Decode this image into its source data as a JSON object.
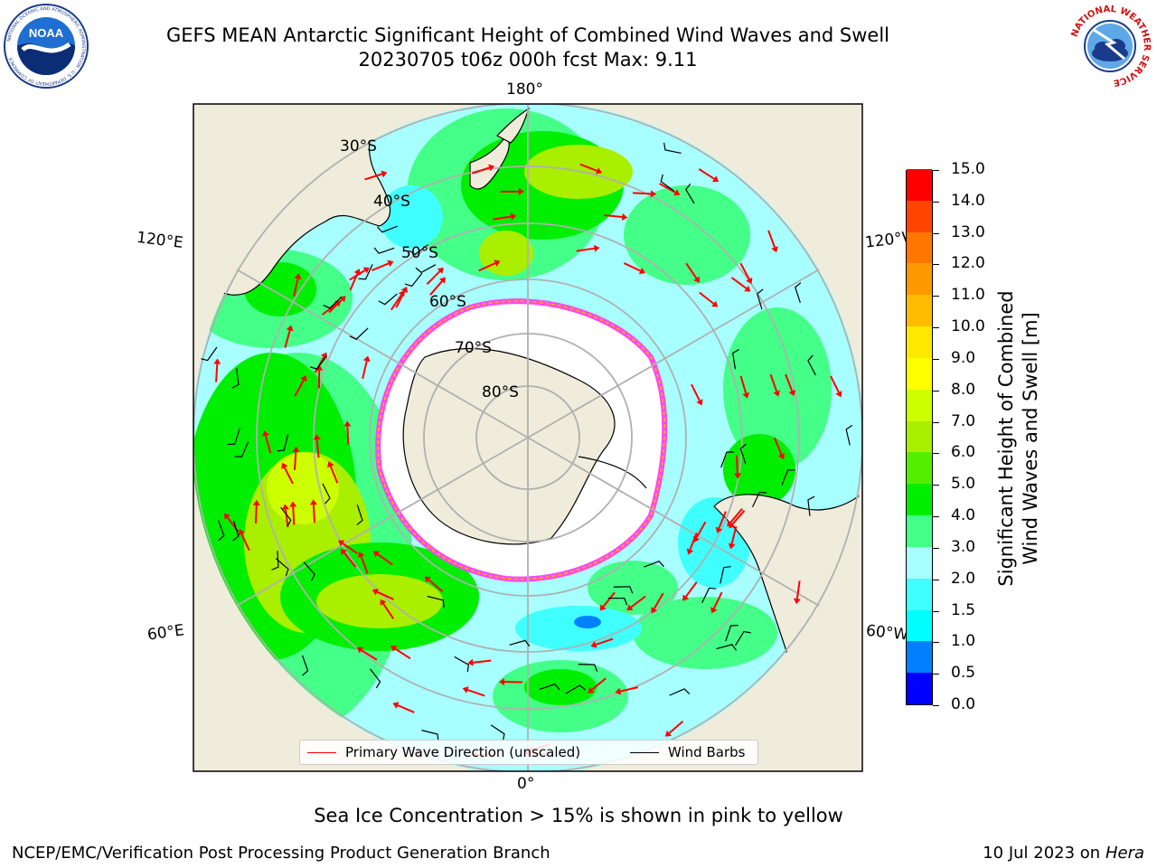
{
  "title": {
    "line1": "GEFS MEAN Antarctic Significant Height of Combined Wind Waves and Swell",
    "line2": "20230705 t06z 000h fcst   Max: 9.11"
  },
  "logos": {
    "left": {
      "icon": "noaa-logo",
      "text": "NOAA",
      "ring_text": "NATIONAL OCEANIC AND ATMOSPHERIC ADMINISTRATION · U.S. DEPARTMENT OF COMMERCE"
    },
    "right": {
      "icon": "national-weather-service-logo",
      "ring_text": "NATIONAL WEATHER SERVICE"
    }
  },
  "map": {
    "projection": "south-polar-stereographic",
    "lat_labels": [
      "30°S",
      "40°S",
      "50°S",
      "60°S",
      "70°S",
      "80°S"
    ],
    "lon_labels": {
      "top": "180°",
      "bottom": "0°",
      "left_upper": "120°E",
      "left_lower": "60°E",
      "right_upper": "120°W",
      "right_lower": "60°W"
    },
    "colors": {
      "land": "#efecdc",
      "ocean_background": "#a8ffff",
      "grid": "#b0b0b0",
      "sea_ice": "#ffffff",
      "sea_ice_edge": [
        "#ff44ff",
        "#ffaa00",
        "#ffff66"
      ],
      "arrow": "#ff0000",
      "barb": "#000000"
    }
  },
  "colorbar": {
    "label_line1": "Significant Height of Combined",
    "label_line2": "Wind Waves and Swell [m]",
    "ticks": [
      "0.0",
      "0.5",
      "1.0",
      "1.5",
      "2.0",
      "3.0",
      "4.0",
      "5.0",
      "6.0",
      "7.0",
      "8.0",
      "9.0",
      "10.0",
      "11.0",
      "12.0",
      "13.0",
      "14.0",
      "15.0"
    ],
    "colors": [
      "#0000ff",
      "#0080ff",
      "#00ffff",
      "#40ffff",
      "#a8ffff",
      "#44ff88",
      "#00ee00",
      "#55ee00",
      "#aaee00",
      "#ccff00",
      "#ffff00",
      "#ffe800",
      "#ffbb00",
      "#ff9900",
      "#ff7700",
      "#ff4400",
      "#ff0000"
    ]
  },
  "legend": {
    "wave_direction": "Primary Wave Direction (unscaled)",
    "wind_barbs": "Wind Barbs",
    "wave_color": "#ff0000",
    "barb_color": "#000000"
  },
  "footer": {
    "note": "Sea Ice Concentration > 15% is shown in pink to yellow",
    "credit": "NCEP/EMC/Verification Post Processing Product Generation Branch",
    "date": "10 Jul 2023 on",
    "host": "Hera"
  }
}
